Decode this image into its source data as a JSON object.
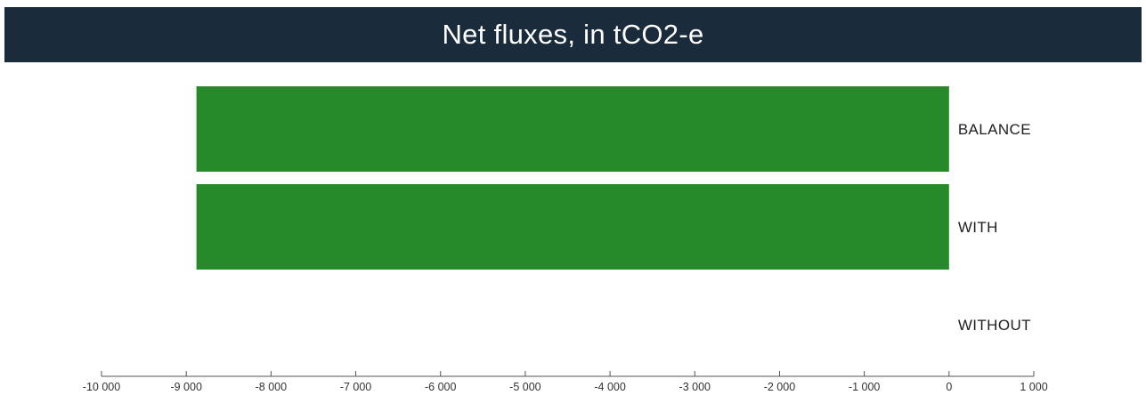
{
  "chart_data": {
    "type": "bar",
    "orientation": "horizontal",
    "title": "Net fluxes, in tCO2-e",
    "categories": [
      "BALANCE",
      "WITH",
      "WITHOUT"
    ],
    "values": [
      -8880,
      -8880,
      0
    ],
    "xlabel": "",
    "ylabel": "",
    "xlim": [
      -10000,
      1000
    ],
    "x_ticks": [
      -10000,
      -9000,
      -8000,
      -7000,
      -6000,
      -5000,
      -4000,
      -3000,
      -2000,
      -1000,
      0,
      1000
    ],
    "x_tick_labels": [
      "-10 000",
      "-9 000",
      "-8 000",
      "-7 000",
      "-6 000",
      "-5 000",
      "-4 000",
      "-3 000",
      "-2 000",
      "-1 000",
      "0",
      "1 000"
    ],
    "grid": false,
    "legend": "none",
    "bar_color": "#268a2a",
    "title_bar_color": "#1a2b3c"
  }
}
